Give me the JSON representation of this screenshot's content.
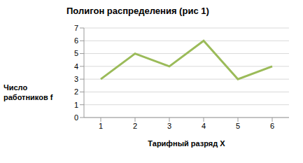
{
  "chart_data": {
    "type": "line",
    "title": "Полигон распределения (рис 1)",
    "x_label": "Тарифный разряд X",
    "y_label": "Число работников f",
    "categories": [
      "1",
      "2",
      "3",
      "4",
      "5",
      "6"
    ],
    "values": [
      3,
      5,
      4,
      6,
      3,
      4
    ],
    "color": "#9bbb59",
    "ylim": [
      0,
      7
    ],
    "yticks": [
      0,
      1,
      2,
      3,
      4,
      5,
      6,
      7
    ],
    "grid": true
  }
}
